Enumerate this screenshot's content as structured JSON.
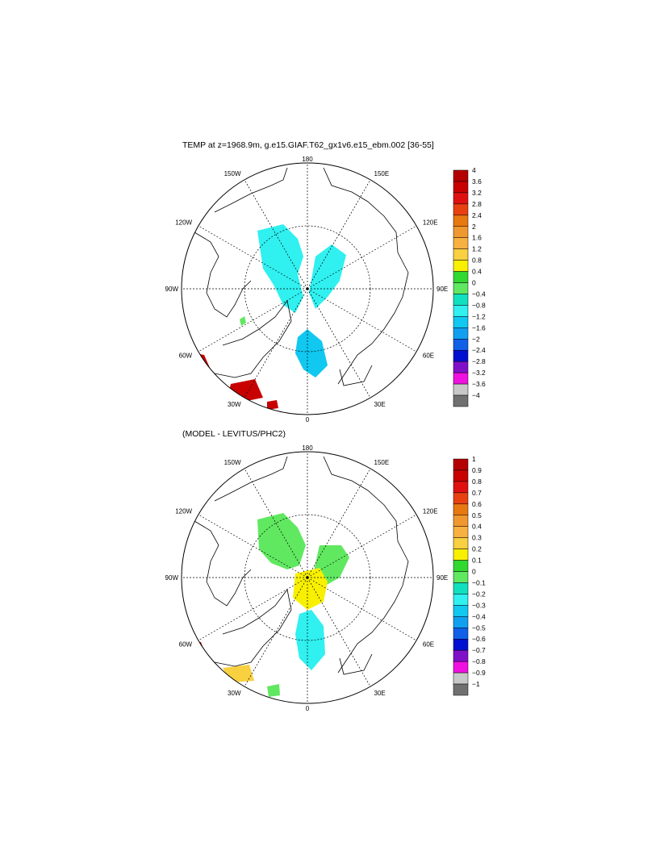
{
  "panels": [
    {
      "title": "TEMP at z=1968.9m, g.e15.GIAF.T62_gx1v6.e15_ebm.002 [36-55]",
      "lon_labels": [
        "180",
        "150E",
        "120E",
        "90E",
        "60E",
        "30E",
        "0",
        "30W",
        "60W",
        "90W",
        "120W",
        "150W"
      ],
      "colorbar_labels": [
        "4",
        "3.6",
        "3.2",
        "2.8",
        "2.4",
        "2",
        "1.6",
        "1.2",
        "0.8",
        "0.4",
        "0",
        "−0.4",
        "−0.8",
        "−1.2",
        "−1.6",
        "−2",
        "−2.4",
        "−2.8",
        "−3.2",
        "−3.6",
        "−4"
      ],
      "colorbar_colors": [
        "#b40000",
        "#c80000",
        "#e01010",
        "#e84010",
        "#e87810",
        "#f09830",
        "#f8b040",
        "#f8d040",
        "#f8f000",
        "#30d830",
        "#60e860",
        "#10e0c0",
        "#30f0f0",
        "#10c8f0",
        "#10a0f0",
        "#1060e8",
        "#0010d0",
        "#8010c8",
        "#f010e0",
        "#c8c8c8",
        "#707070"
      ]
    },
    {
      "title": "(MODEL - LEVITUS/PHC2)",
      "lon_labels": [
        "180",
        "150E",
        "120E",
        "90E",
        "60E",
        "30E",
        "0",
        "30W",
        "60W",
        "90W",
        "120W",
        "150W"
      ],
      "colorbar_labels": [
        "1",
        "0.9",
        "0.8",
        "0.7",
        "0.6",
        "0.5",
        "0.4",
        "0.3",
        "0.2",
        "0.1",
        "0",
        "−0.1",
        "−0.2",
        "−0.3",
        "−0.4",
        "−0.5",
        "−0.6",
        "−0.7",
        "−0.8",
        "−0.9",
        "−1"
      ],
      "colorbar_colors": [
        "#b40000",
        "#c80000",
        "#e01010",
        "#e84010",
        "#e87810",
        "#f09830",
        "#f8b040",
        "#f8d040",
        "#f8f000",
        "#30d830",
        "#60e860",
        "#10e0c0",
        "#30f0f0",
        "#10c8f0",
        "#10a0f0",
        "#1060e8",
        "#0010d0",
        "#8010c8",
        "#f010e0",
        "#c8c8c8",
        "#707070"
      ]
    }
  ]
}
